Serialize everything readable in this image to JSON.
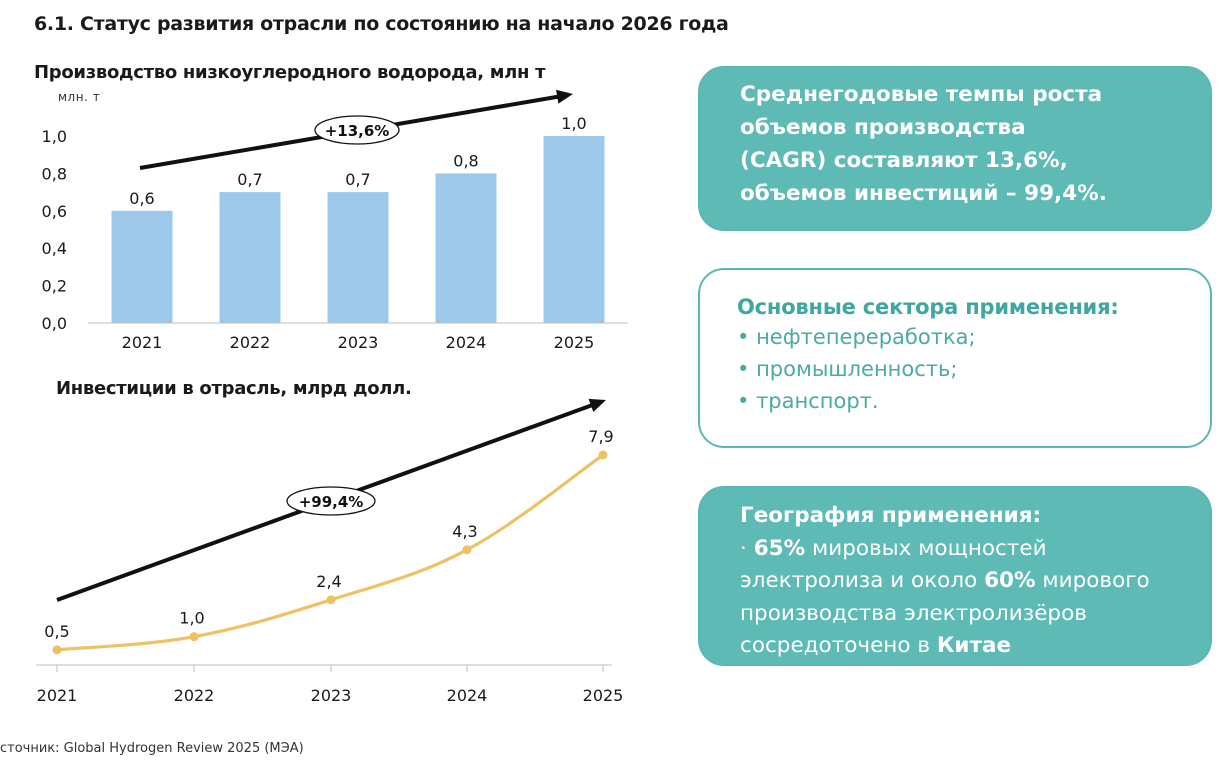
{
  "page": {
    "title": "6.1. Статус развития отрасли по состоянию на начало 2026 года",
    "source": "сточник: Global Hydrogen Review 2025 (МЭА)"
  },
  "chart_data": [
    {
      "type": "bar",
      "title": "Производство низкоуглеродного водорода, млн т",
      "ylabel": "млн. т",
      "categories": [
        "2021",
        "2022",
        "2023",
        "2024",
        "2025"
      ],
      "values": [
        0.6,
        0.7,
        0.7,
        0.8,
        1.0
      ],
      "value_labels": [
        "0,6",
        "0,7",
        "0,7",
        "0,8",
        "1,0"
      ],
      "yticks": [
        "0,0",
        "0,2",
        "0,4",
        "0,6",
        "0,8",
        "1,0"
      ],
      "ylim": [
        0,
        1.0
      ],
      "color": "#9dc8e9",
      "trend_label": "+13,6%"
    },
    {
      "type": "line",
      "title": "Инвестиции в отрасль, млрд долл.",
      "categories": [
        "2021",
        "2022",
        "2023",
        "2024",
        "2025"
      ],
      "values": [
        0.5,
        1.0,
        2.4,
        4.3,
        7.9
      ],
      "value_labels": [
        "0,5",
        "1,0",
        "2,4",
        "4,3",
        "7,9"
      ],
      "ylim": [
        0,
        7.9
      ],
      "color": "#eec164",
      "trend_label": "+99,4%"
    }
  ],
  "cards": {
    "cagr": {
      "lines": [
        "Среднегодовые темпы роста",
        "объемов производства",
        "(CAGR) составляют 13,6%,",
        "объемов инвестиций – 99,4%."
      ]
    },
    "sectors": {
      "title": "Основные сектора применения:",
      "items": [
        "нефтепереработка;",
        "промышленность;",
        "транспорт."
      ]
    },
    "geography": {
      "title": "География применения:",
      "bullet": "·",
      "pct1": "65%",
      "text1": "мировых мощностей",
      "text2": "электролиза и около",
      "pct2": "60%",
      "text3": "мирового",
      "text4": "производства электролизёров",
      "text5": "сосредоточено в",
      "country": "Китае"
    }
  },
  "colors": {
    "teal": "#5ebab5",
    "teal_text": "#3fa6a0",
    "bar": "#9dc8e9",
    "line": "#eec164"
  }
}
